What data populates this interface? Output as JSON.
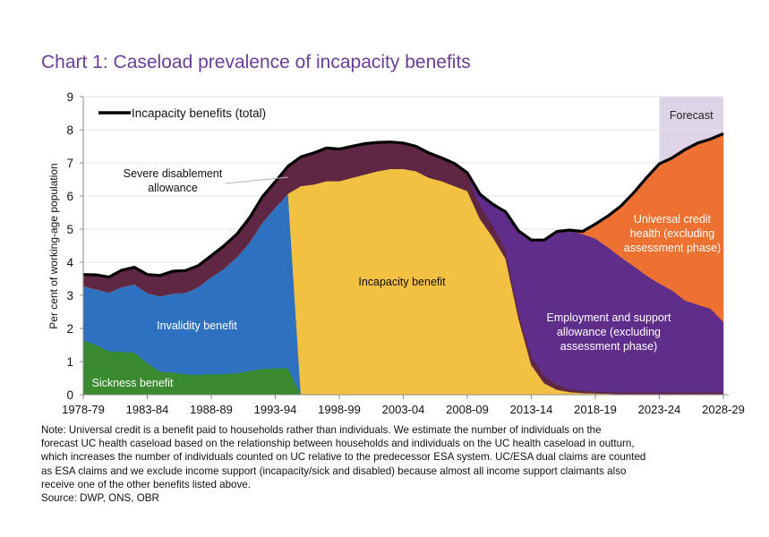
{
  "title": "Chart 1: Caseload prevalence of incapacity benefits",
  "note_lines": [
    "Note: Universal credit is a benefit paid to households rather than individuals. We estimate the number of individuals on the",
    "forecast UC health caseload based on the relationship between households and individuals on the UC health caseload in outturn,",
    "which increases the number of individuals counted on UC relative to the predecessor ESA system. UC/ESA dual claims are counted",
    "as ESA claims and we exclude income support (incapacity/sick and disabled) because almost all income support claimants also",
    "receive one of the other benefits listed above."
  ],
  "source": "Source: DWP, ONS, OBR",
  "chart_data": {
    "type": "area",
    "stacked": true,
    "title": "Chart 1: Caseload prevalence of incapacity benefits",
    "xlabel": "",
    "ylabel": "Per cent of working-age population",
    "ylim": [
      0,
      9
    ],
    "yticks": [
      0,
      1,
      2,
      3,
      4,
      5,
      6,
      7,
      8,
      9
    ],
    "grid": true,
    "xtick_labels": [
      "1978-79",
      "1983-84",
      "1988-89",
      "1993-94",
      "1998-99",
      "2003-04",
      "2008-09",
      "2013-14",
      "2018-19",
      "2023-24",
      "2028-29"
    ],
    "categories": [
      "1978-79",
      "1979-80",
      "1980-81",
      "1981-82",
      "1982-83",
      "1983-84",
      "1984-85",
      "1985-86",
      "1986-87",
      "1987-88",
      "1988-89",
      "1989-90",
      "1990-91",
      "1991-92",
      "1992-93",
      "1993-94",
      "1994-95",
      "1995-96",
      "1996-97",
      "1997-98",
      "1998-99",
      "1999-00",
      "2000-01",
      "2001-02",
      "2002-03",
      "2003-04",
      "2004-05",
      "2005-06",
      "2006-07",
      "2007-08",
      "2008-09",
      "2009-10",
      "2010-11",
      "2011-12",
      "2012-13",
      "2013-14",
      "2014-15",
      "2015-16",
      "2016-17",
      "2017-18",
      "2018-19",
      "2019-20",
      "2020-21",
      "2021-22",
      "2022-23",
      "2023-24",
      "2024-25",
      "2025-26",
      "2026-27",
      "2027-28",
      "2028-29"
    ],
    "forecast": {
      "label": "Forecast",
      "from": "2023-24",
      "to": "2028-29",
      "color": "#ddd5e7"
    },
    "series": [
      {
        "name": "Sickness benefit",
        "color": "#3a8a2f",
        "label_color": "#ffffff",
        "values": [
          1.65,
          1.5,
          1.32,
          1.3,
          1.28,
          0.95,
          0.7,
          0.67,
          0.62,
          0.6,
          0.62,
          0.63,
          0.65,
          0.72,
          0.78,
          0.8,
          0.8,
          0,
          0,
          0,
          0,
          0,
          0,
          0,
          0,
          0,
          0,
          0,
          0,
          0,
          0,
          0,
          0,
          0,
          0,
          0,
          0,
          0,
          0,
          0,
          0,
          0,
          0,
          0,
          0,
          0,
          0,
          0,
          0,
          0,
          0
        ]
      },
      {
        "name": "Invalidity benefit",
        "color": "#2f71c1",
        "label_color": "#ffffff",
        "values": [
          1.63,
          1.68,
          1.76,
          1.95,
          2.05,
          2.12,
          2.27,
          2.38,
          2.46,
          2.65,
          2.93,
          3.17,
          3.5,
          3.88,
          4.42,
          4.85,
          5.27,
          0,
          0,
          0,
          0,
          0,
          0,
          0,
          0,
          0,
          0,
          0,
          0,
          0,
          0,
          0,
          0,
          0,
          0,
          0,
          0,
          0,
          0,
          0,
          0,
          0,
          0,
          0,
          0,
          0,
          0,
          0,
          0,
          0,
          0
        ]
      },
      {
        "name": "Incapacity benefit",
        "color": "#f3c142",
        "label_color": "#111111",
        "values": [
          0,
          0,
          0,
          0,
          0,
          0,
          0,
          0,
          0,
          0,
          0,
          0,
          0,
          0,
          0,
          0,
          0,
          6.3,
          6.35,
          6.45,
          6.45,
          6.55,
          6.65,
          6.75,
          6.82,
          6.82,
          6.75,
          6.55,
          6.45,
          6.3,
          6.15,
          5.3,
          4.75,
          4.1,
          2.3,
          0.9,
          0.35,
          0.15,
          0.08,
          0.05,
          0.04,
          0.03,
          0.02,
          0.02,
          0.02,
          0.02,
          0.02,
          0.02,
          0.02,
          0.02,
          0.02
        ]
      },
      {
        "name": "Severe disablement allowance",
        "color": "#5f2744",
        "label_color": "#111111",
        "values": [
          0.35,
          0.44,
          0.47,
          0.51,
          0.52,
          0.56,
          0.63,
          0.68,
          0.67,
          0.65,
          0.65,
          0.7,
          0.7,
          0.75,
          0.78,
          0.78,
          0.83,
          0.88,
          0.95,
          1.0,
          0.97,
          0.95,
          0.93,
          0.87,
          0.81,
          0.78,
          0.75,
          0.75,
          0.7,
          0.68,
          0.5,
          0.4,
          0.35,
          0.25,
          0.2,
          0.25,
          0.22,
          0.15,
          0.1,
          0.07,
          0.06,
          0.05,
          0.05,
          0.05,
          0.05,
          0.05,
          0.05,
          0.05,
          0.05,
          0.05,
          0.05
        ]
      },
      {
        "name": "Employment and support allowance (excluding assessment phase)",
        "color": "#5f2e8b",
        "label_color": "#ffffff",
        "values": [
          0,
          0,
          0,
          0,
          0,
          0,
          0,
          0,
          0,
          0,
          0,
          0,
          0,
          0,
          0,
          0,
          0,
          0,
          0,
          0,
          0,
          0,
          0,
          0,
          0,
          0,
          0,
          0,
          0,
          0,
          0.05,
          0.35,
          0.65,
          1.17,
          2.45,
          3.52,
          4.1,
          4.63,
          4.79,
          4.73,
          4.62,
          4.37,
          4.08,
          3.81,
          3.53,
          3.29,
          3.08,
          2.78,
          2.65,
          2.53,
          2.13
        ]
      },
      {
        "name": "Universal credit health (excluding assessment phase)",
        "color": "#ed7131",
        "label_color": "#ffffff",
        "values": [
          0,
          0,
          0,
          0,
          0,
          0,
          0,
          0,
          0,
          0,
          0,
          0,
          0,
          0,
          0,
          0,
          0,
          0,
          0,
          0,
          0,
          0,
          0,
          0,
          0,
          0,
          0,
          0,
          0,
          0,
          0,
          0,
          0,
          0,
          0,
          0,
          0,
          0,
          0,
          0.08,
          0.43,
          0.95,
          1.55,
          2.22,
          2.95,
          3.61,
          4.0,
          4.55,
          4.88,
          5.12,
          5.68
        ]
      }
    ],
    "total": {
      "name": "Incapacity benefits (total)",
      "color": "#000000",
      "values": [
        3.63,
        3.62,
        3.55,
        3.76,
        3.85,
        3.63,
        3.6,
        3.73,
        3.75,
        3.9,
        4.2,
        4.5,
        4.85,
        5.35,
        5.98,
        6.43,
        6.9,
        7.18,
        7.3,
        7.45,
        7.42,
        7.5,
        7.58,
        7.62,
        7.63,
        7.6,
        7.5,
        7.3,
        7.15,
        6.98,
        6.7,
        6.05,
        5.75,
        5.52,
        4.95,
        4.67,
        4.67,
        4.93,
        4.97,
        4.93,
        5.15,
        5.4,
        5.7,
        6.1,
        6.55,
        6.97,
        7.15,
        7.4,
        7.6,
        7.72,
        7.88
      ]
    },
    "legend": {
      "entries": [
        "Incapacity benefits (total)"
      ],
      "placement": "top-left"
    },
    "area_labels": [
      {
        "series": "Sickness benefit",
        "lines": [
          "Sickness benefit"
        ]
      },
      {
        "series": "Invalidity benefit",
        "lines": [
          "Invalidity benefit"
        ]
      },
      {
        "series": "Severe disablement allowance",
        "lines": [
          "Severe disablement",
          "allowance"
        ]
      },
      {
        "series": "Incapacity benefit",
        "lines": [
          "Incapacity benefit"
        ]
      },
      {
        "series": "Employment and support allowance (excluding assessment phase)",
        "lines": [
          "Employment and support",
          "allowance (excluding",
          "assessment phase)"
        ]
      },
      {
        "series": "Universal credit health (excluding assessment phase)",
        "lines": [
          "Universal credit",
          "health (excluding",
          "assessment phase)"
        ]
      }
    ]
  }
}
